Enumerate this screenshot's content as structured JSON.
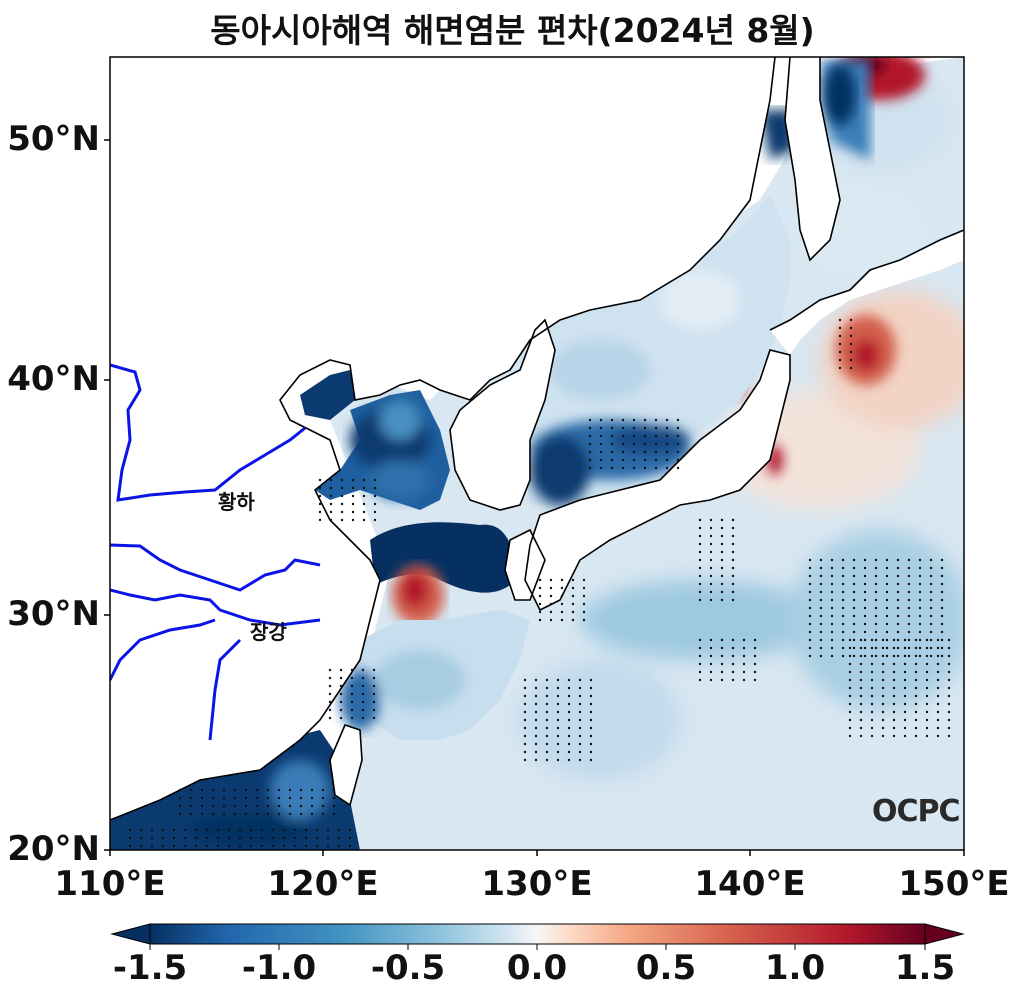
{
  "title": "동아시아해역 해면염분 편차(2024년 8월)",
  "map": {
    "lon_range": [
      110,
      150
    ],
    "lat_range": [
      20,
      53.5
    ],
    "lat_ticks": [
      "20°N",
      "30°N",
      "40°N",
      "50°N"
    ],
    "lon_ticks": [
      "110°E",
      "120°E",
      "130°E",
      "140°E",
      "150°E"
    ],
    "rivers": [
      "황하",
      "장강"
    ],
    "logo": "OCPC",
    "river_color": "#0a14e6"
  },
  "colorbar": {
    "min": -1.5,
    "max": 1.5,
    "labels": [
      "-1.5",
      "-1.0",
      "-0.5",
      "0.0",
      "0.5",
      "1.0",
      "1.5"
    ],
    "colormap": "RdBu_r"
  }
}
